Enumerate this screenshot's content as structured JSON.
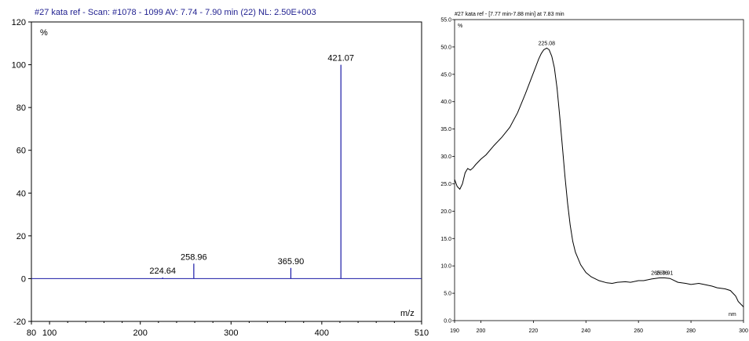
{
  "chart_data": [
    {
      "type": "bar",
      "title": "#27 kata ref - Scan: #1078 - 1099  AV: 7.74 - 7.90 min (22) NL: 2.50E+003",
      "y_unit_label": "%",
      "xlabel": "m/z",
      "xlim": [
        80,
        510
      ],
      "ylim": [
        -20,
        120
      ],
      "x_ticks": [
        "80",
        "100",
        "200",
        "300",
        "400",
        "510"
      ],
      "x_tick_values": [
        80,
        100,
        200,
        300,
        400,
        510
      ],
      "y_ticks": [
        "120",
        "100",
        "80",
        "60",
        "40",
        "20",
        "0",
        "-20"
      ],
      "y_tick_values": [
        120,
        100,
        80,
        60,
        40,
        20,
        0,
        -20
      ],
      "peaks": [
        {
          "x": 224.64,
          "y": 0.5,
          "label": "224.64"
        },
        {
          "x": 258.96,
          "y": 7,
          "label": "258.96"
        },
        {
          "x": 365.9,
          "y": 5,
          "label": "365.90"
        },
        {
          "x": 421.07,
          "y": 100,
          "label": "421.07"
        }
      ],
      "color": "#1a1aa6"
    },
    {
      "type": "line",
      "title": "#27 kata ref - [7.77 min-7.88 min] at 7.83 min",
      "y_unit_label": "%",
      "xlabel": "nm",
      "xlim": [
        190,
        300
      ],
      "ylim": [
        0,
        55
      ],
      "x_ticks": [
        "190",
        "200",
        "220",
        "240",
        "260",
        "280",
        "300"
      ],
      "x_tick_values": [
        190,
        200,
        220,
        240,
        260,
        280,
        300
      ],
      "y_ticks": [
        "55.0",
        "50.0",
        "45.0",
        "40.0",
        "35.0",
        "30.0",
        "25.0",
        "20.0",
        "15.0",
        "10.0",
        "5.0",
        "0.0"
      ],
      "y_tick_values": [
        55,
        50,
        45,
        40,
        35,
        30,
        25,
        20,
        15,
        10,
        5,
        0
      ],
      "x": [
        190,
        191,
        192,
        193,
        194,
        195,
        196,
        197,
        198,
        200,
        202,
        205,
        208,
        211,
        214,
        217,
        219,
        221,
        222,
        223,
        224,
        225.08,
        226,
        227,
        228,
        229,
        230,
        231,
        232,
        233,
        234,
        235,
        236,
        238,
        240,
        242,
        245,
        248,
        250,
        252,
        255,
        257,
        260,
        262,
        265,
        268,
        270,
        272,
        275,
        278,
        280,
        283,
        285,
        288,
        290,
        293,
        295,
        297,
        298,
        300
      ],
      "y": [
        25.8,
        24.5,
        24.0,
        25.0,
        27.0,
        27.8,
        27.5,
        27.9,
        28.5,
        29.5,
        30.3,
        32.0,
        33.5,
        35.3,
        38.0,
        41.5,
        44.0,
        46.5,
        47.8,
        48.8,
        49.5,
        49.8,
        49.5,
        48.3,
        46.2,
        42.5,
        37.5,
        32.0,
        26.5,
        21.5,
        17.5,
        14.5,
        12.5,
        10.2,
        8.8,
        8.0,
        7.3,
        6.9,
        6.8,
        7.0,
        7.1,
        7.0,
        7.3,
        7.3,
        7.6,
        7.8,
        7.8,
        7.7,
        7.0,
        6.8,
        6.6,
        6.8,
        6.6,
        6.3,
        6.0,
        5.8,
        5.5,
        4.5,
        3.5,
        2.5
      ],
      "annotations": [
        {
          "x": 225.08,
          "y": 49.8,
          "label": "225.08"
        },
        {
          "x": 268,
          "y": 7.8,
          "label": "265.76"
        },
        {
          "x": 270,
          "y": 7.8,
          "label": "269.91"
        }
      ],
      "color": "#000000"
    }
  ]
}
